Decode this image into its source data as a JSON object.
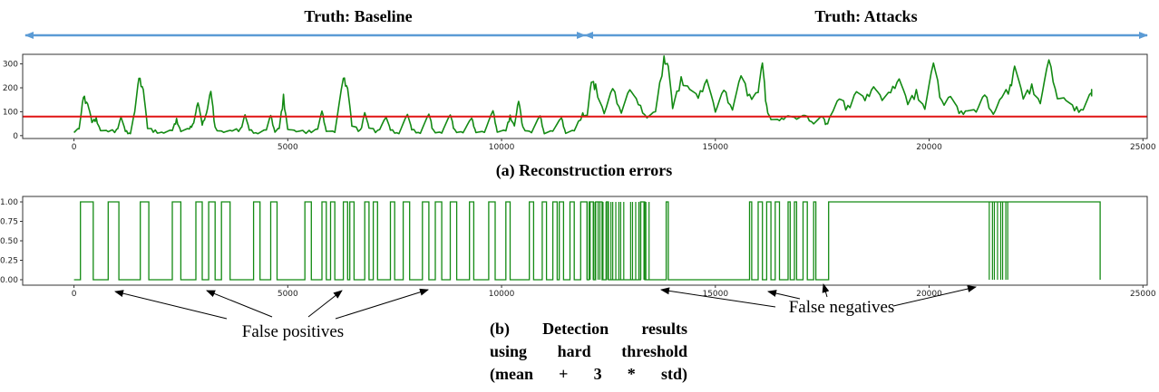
{
  "headers": {
    "baseline": "Truth: Baseline",
    "attacks": "Truth: Attacks"
  },
  "captions": {
    "a": "(a) Reconstruction errors",
    "b_lines": [
      "(b) Detection results",
      "using hard threshold",
      "(mean + 3 * std)"
    ]
  },
  "annotations": {
    "false_positives": "False positives",
    "false_negatives": "False negatives"
  },
  "colors": {
    "series": "#138a13",
    "threshold": "#e01414",
    "header_arrow": "#5b9bd5",
    "axes": "#333333"
  },
  "chart_data": [
    {
      "type": "line",
      "xlim": [
        -1200,
        25100
      ],
      "ylim": [
        -12,
        340
      ],
      "xticks": [
        "0",
        "5000",
        "10000",
        "15000",
        "20000",
        "25000"
      ],
      "yticks": [
        "0",
        "100",
        "200",
        "300"
      ],
      "threshold": 80,
      "series_points": [
        [
          0,
          20
        ],
        [
          120,
          30
        ],
        [
          220,
          150
        ],
        [
          320,
          145
        ],
        [
          420,
          55
        ],
        [
          520,
          70
        ],
        [
          620,
          25
        ],
        [
          800,
          15
        ],
        [
          1000,
          20
        ],
        [
          1100,
          80
        ],
        [
          1200,
          15
        ],
        [
          1320,
          15
        ],
        [
          1420,
          100
        ],
        [
          1520,
          230
        ],
        [
          1620,
          205
        ],
        [
          1720,
          30
        ],
        [
          1900,
          18
        ],
        [
          2100,
          15
        ],
        [
          2300,
          20
        ],
        [
          2400,
          65
        ],
        [
          2500,
          20
        ],
        [
          2700,
          25
        ],
        [
          2800,
          60
        ],
        [
          2900,
          140
        ],
        [
          3000,
          40
        ],
        [
          3100,
          100
        ],
        [
          3200,
          185
        ],
        [
          3300,
          30
        ],
        [
          3500,
          18
        ],
        [
          3700,
          18
        ],
        [
          3900,
          25
        ],
        [
          4000,
          90
        ],
        [
          4100,
          20
        ],
        [
          4300,
          15
        ],
        [
          4500,
          25
        ],
        [
          4600,
          80
        ],
        [
          4700,
          20
        ],
        [
          4800,
          30
        ],
        [
          4900,
          160
        ],
        [
          5000,
          30
        ],
        [
          5200,
          15
        ],
        [
          5500,
          15
        ],
        [
          5700,
          30
        ],
        [
          5800,
          100
        ],
        [
          5900,
          25
        ],
        [
          6100,
          15
        ],
        [
          6300,
          230
        ],
        [
          6400,
          210
        ],
        [
          6500,
          40
        ],
        [
          6700,
          20
        ],
        [
          6800,
          100
        ],
        [
          6900,
          30
        ],
        [
          7100,
          15
        ],
        [
          7300,
          80
        ],
        [
          7400,
          20
        ],
        [
          7600,
          15
        ],
        [
          7800,
          90
        ],
        [
          7900,
          20
        ],
        [
          8100,
          15
        ],
        [
          8300,
          90
        ],
        [
          8400,
          20
        ],
        [
          8600,
          15
        ],
        [
          8800,
          85
        ],
        [
          8900,
          20
        ],
        [
          9100,
          15
        ],
        [
          9300,
          70
        ],
        [
          9400,
          20
        ],
        [
          9600,
          15
        ],
        [
          9800,
          100
        ],
        [
          9900,
          20
        ],
        [
          10100,
          20
        ],
        [
          10200,
          80
        ],
        [
          10300,
          45
        ],
        [
          10400,
          140
        ],
        [
          10500,
          30
        ],
        [
          10700,
          15
        ],
        [
          10900,
          80
        ],
        [
          11000,
          15
        ],
        [
          11200,
          20
        ],
        [
          11400,
          70
        ],
        [
          11500,
          15
        ],
        [
          11700,
          20
        ],
        [
          11900,
          90
        ],
        [
          12000,
          85
        ],
        [
          12100,
          220
        ],
        [
          12200,
          200
        ],
        [
          12400,
          95
        ],
        [
          12600,
          190
        ],
        [
          12800,
          110
        ],
        [
          13000,
          195
        ],
        [
          13200,
          120
        ],
        [
          13400,
          80
        ],
        [
          13600,
          100
        ],
        [
          13800,
          320
        ],
        [
          13900,
          300
        ],
        [
          14000,
          110
        ],
        [
          14200,
          230
        ],
        [
          14400,
          200
        ],
        [
          14600,
          150
        ],
        [
          14800,
          250
        ],
        [
          15000,
          100
        ],
        [
          15200,
          180
        ],
        [
          15400,
          120
        ],
        [
          15600,
          250
        ],
        [
          15800,
          160
        ],
        [
          16000,
          190
        ],
        [
          16100,
          300
        ],
        [
          16200,
          110
        ],
        [
          16300,
          70
        ],
        [
          16500,
          60
        ],
        [
          16700,
          90
        ],
        [
          16900,
          70
        ],
        [
          17100,
          80
        ],
        [
          17300,
          55
        ],
        [
          17500,
          80
        ],
        [
          17600,
          45
        ],
        [
          17700,
          90
        ],
        [
          17900,
          150
        ],
        [
          18100,
          110
        ],
        [
          18300,
          190
        ],
        [
          18500,
          140
        ],
        [
          18700,
          220
        ],
        [
          18900,
          150
        ],
        [
          19100,
          170
        ],
        [
          19300,
          250
        ],
        [
          19500,
          130
        ],
        [
          19700,
          180
        ],
        [
          19900,
          120
        ],
        [
          20100,
          300
        ],
        [
          20300,
          130
        ],
        [
          20500,
          170
        ],
        [
          20700,
          90
        ],
        [
          20900,
          120
        ],
        [
          21100,
          100
        ],
        [
          21300,
          160
        ],
        [
          21500,
          95
        ],
        [
          21700,
          160
        ],
        [
          21900,
          200
        ],
        [
          22000,
          300
        ],
        [
          22200,
          150
        ],
        [
          22400,
          200
        ],
        [
          22600,
          140
        ],
        [
          22800,
          310
        ],
        [
          23000,
          170
        ],
        [
          23200,
          150
        ],
        [
          23400,
          100
        ],
        [
          23600,
          120
        ],
        [
          23800,
          180
        ]
      ]
    },
    {
      "type": "line",
      "xlim": [
        -1200,
        25100
      ],
      "ylim": [
        -0.07,
        1.07
      ],
      "xticks": [
        "0",
        "5000",
        "10000",
        "15000",
        "20000",
        "25000"
      ],
      "yticks": [
        "0.00",
        "0.25",
        "0.50",
        "0.75",
        "1.00"
      ],
      "step_on_intervals": [
        [
          150,
          450
        ],
        [
          800,
          1050
        ],
        [
          1550,
          1750
        ],
        [
          2300,
          2500
        ],
        [
          2850,
          3000
        ],
        [
          3150,
          3300
        ],
        [
          3450,
          3650
        ],
        [
          4200,
          4350
        ],
        [
          4600,
          4750
        ],
        [
          5400,
          5550
        ],
        [
          5800,
          5900
        ],
        [
          6000,
          6100
        ],
        [
          6300,
          6400
        ],
        [
          6450,
          6550
        ],
        [
          6800,
          6900
        ],
        [
          7000,
          7100
        ],
        [
          7400,
          7500
        ],
        [
          7700,
          7850
        ],
        [
          8150,
          8300
        ],
        [
          8450,
          8600
        ],
        [
          8800,
          8950
        ],
        [
          9250,
          9350
        ],
        [
          9700,
          9850
        ],
        [
          10100,
          10200
        ],
        [
          10650,
          10750
        ],
        [
          10950,
          11050
        ],
        [
          11200,
          11300
        ],
        [
          11350,
          11450
        ],
        [
          11600,
          11700
        ],
        [
          11850,
          12000
        ],
        [
          12050,
          12150
        ],
        [
          12200,
          12350
        ],
        [
          12450,
          12500
        ],
        [
          13250,
          13350
        ],
        [
          13850,
          13900
        ],
        [
          15800,
          15850
        ],
        [
          16000,
          16100
        ],
        [
          16200,
          16300
        ],
        [
          16400,
          16500
        ],
        [
          16700,
          16750
        ],
        [
          16850,
          16900
        ],
        [
          17050,
          17150
        ],
        [
          17300,
          17350
        ],
        [
          17650,
          24000
        ],
        [
          20050,
          21100
        ],
        [
          21350,
          21850
        ],
        [
          22250,
          24000
        ]
      ],
      "dense_regions": [
        [
          12000,
          12900
        ],
        [
          13000,
          13500
        ],
        [
          21400,
          21900
        ]
      ]
    }
  ]
}
